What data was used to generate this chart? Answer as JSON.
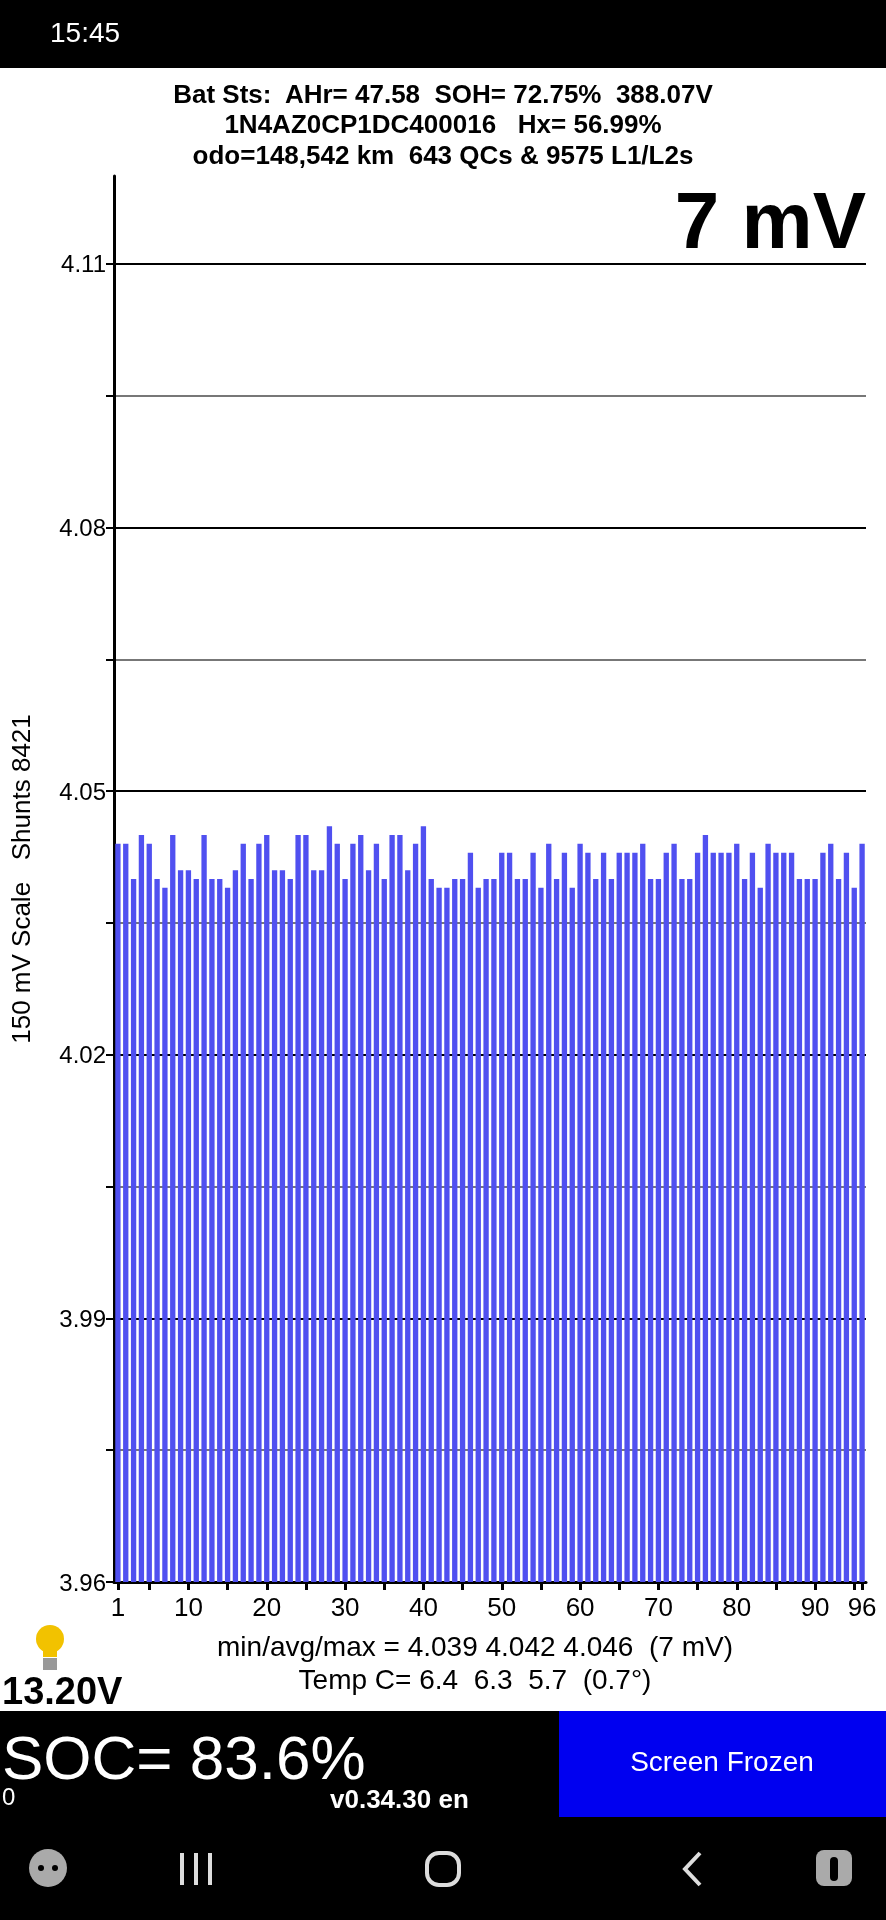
{
  "chart_data": {
    "type": "bar",
    "title": "Bat Sts:  AHr= 47.58  SOH= 72.75%  388.07V",
    "subtitle": "1N4AZ0CP1DC400016   Hx= 56.99%",
    "ylabel": "150 mV Scale   Shunts 8421",
    "categories": [
      "1",
      null,
      null,
      null,
      null,
      null,
      null,
      null,
      null,
      "10",
      null,
      null,
      null,
      null,
      null,
      null,
      null,
      null,
      null,
      "20",
      null,
      null,
      null,
      null,
      null,
      null,
      null,
      null,
      null,
      "30",
      null,
      null,
      null,
      null,
      null,
      null,
      null,
      null,
      null,
      "40",
      null,
      null,
      null,
      null,
      null,
      null,
      null,
      null,
      null,
      "50",
      null,
      null,
      null,
      null,
      null,
      null,
      null,
      null,
      null,
      "60",
      null,
      null,
      null,
      null,
      null,
      null,
      null,
      null,
      null,
      "70",
      null,
      null,
      null,
      null,
      null,
      null,
      null,
      null,
      null,
      "80",
      null,
      null,
      null,
      null,
      null,
      null,
      null,
      null,
      null,
      "90",
      null,
      null,
      null,
      null,
      null,
      "96"
    ],
    "values": [
      4.044,
      4.044,
      4.04,
      4.045,
      4.044,
      4.04,
      4.039,
      4.045,
      4.041,
      4.041,
      4.04,
      4.045,
      4.04,
      4.04,
      4.039,
      4.041,
      4.044,
      4.04,
      4.044,
      4.045,
      4.041,
      4.041,
      4.04,
      4.045,
      4.045,
      4.041,
      4.041,
      4.046,
      4.044,
      4.04,
      4.044,
      4.045,
      4.041,
      4.044,
      4.04,
      4.045,
      4.045,
      4.041,
      4.044,
      4.046,
      4.04,
      4.039,
      4.039,
      4.04,
      4.04,
      4.043,
      4.039,
      4.04,
      4.04,
      4.043,
      4.043,
      4.04,
      4.04,
      4.043,
      4.039,
      4.044,
      4.04,
      4.043,
      4.039,
      4.044,
      4.043,
      4.04,
      4.043,
      4.04,
      4.043,
      4.043,
      4.043,
      4.044,
      4.04,
      4.04,
      4.043,
      4.044,
      4.04,
      4.04,
      4.043,
      4.045,
      4.043,
      4.043,
      4.043,
      4.044,
      4.04,
      4.043,
      4.039,
      4.044,
      4.043,
      4.043,
      4.043,
      4.04,
      4.04,
      4.04,
      4.043,
      4.044,
      4.04,
      4.043,
      4.039,
      4.044
    ],
    "color": "#5050f0",
    "ylim": [
      3.96,
      4.12
    ],
    "yticks": [
      3.96,
      {
        "value": 3.975,
        "label": null
      },
      3.99,
      {
        "value": 4.005,
        "label": null
      },
      4.02,
      {
        "value": 4.035,
        "label": null
      },
      4.05,
      {
        "value": 4.065,
        "label": null
      },
      4.08,
      {
        "value": 4.095,
        "label": null
      },
      4.11
    ],
    "grid": "y",
    "annotations": [
      "7 mV",
      "odo=148,542 km  643 QCs & 9575 L1/L2s",
      "min/avg/max = 4.039 4.042 4.046  (7 mV)",
      "Temp C= 6.4  6.3  5.7  (0.7°)",
      "13.20V",
      "SOC= 83.6%",
      "0",
      "v0.34.30 en",
      "Screen Frozen",
      "15:45"
    ]
  }
}
